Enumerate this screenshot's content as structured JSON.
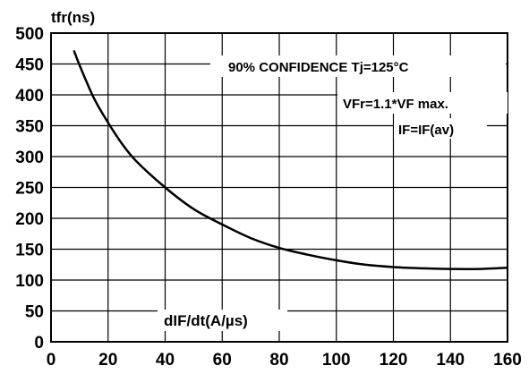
{
  "chart_data": {
    "type": "line",
    "title": "",
    "ylabel": "tfr(ns)",
    "xlabel": "dIF/dt(A/µs)",
    "xlim": [
      0,
      160
    ],
    "ylim": [
      0,
      500
    ],
    "grid": true,
    "x_ticks": [
      "0",
      "20",
      "40",
      "60",
      "80",
      "100",
      "120",
      "140",
      "160"
    ],
    "y_ticks": [
      "0",
      "50",
      "100",
      "150",
      "200",
      "250",
      "300",
      "350",
      "400",
      "450",
      "500"
    ],
    "annotations": [
      "90% CONFIDENCE Tj=125°C",
      "VFr=1.1*VF max.",
      "IF=IF(av)"
    ],
    "series": [
      {
        "x": [
          8,
          10,
          15,
          20,
          25,
          30,
          40,
          50,
          60,
          70,
          80,
          90,
          100,
          110,
          120,
          130,
          140,
          150,
          160
        ],
        "values": [
          472,
          448,
          395,
          355,
          320,
          292,
          250,
          215,
          190,
          168,
          152,
          141,
          132,
          125,
          121,
          119,
          118,
          118,
          120
        ]
      }
    ]
  }
}
